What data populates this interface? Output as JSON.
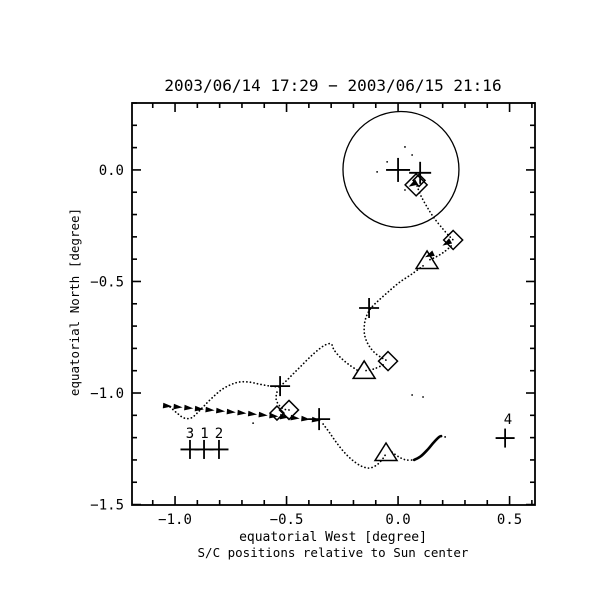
{
  "colors": {
    "ink": "#000000",
    "background": "#ffffff"
  },
  "chart_data": {
    "type": "scatter",
    "title": "2003/06/14 17:29 − 2003/06/15 21:16",
    "xlabel": "equatorial West [degree]",
    "ylabel": "equatorial North [degree]",
    "caption": "S/C positions relative to Sun center",
    "xlim": [
      -1.193,
      0.614
    ],
    "ylim": [
      -1.502,
      0.3
    ],
    "grid": false,
    "x_axis": {
      "major": [
        -1.0,
        -0.5,
        0.0,
        0.5
      ],
      "major_labels": [
        "−1.0",
        "−0.5",
        "0.0",
        "0.5"
      ],
      "minor_step": 0.1
    },
    "y_axis": {
      "major": [
        0.0,
        -0.5,
        -1.0,
        -1.5
      ],
      "major_labels": [
        "0.0",
        "−0.5",
        "−1.0",
        "−1.5"
      ],
      "minor_step": 0.1
    },
    "sun_disk": {
      "x": 0.013,
      "y": 0.002,
      "r_deg": 0.26
    },
    "dots": [
      [
        0.031,
        0.103
      ],
      [
        0.063,
        0.067
      ],
      [
        -0.049,
        0.036
      ],
      [
        -0.094,
        -0.009
      ],
      [
        0.031,
        -0.09
      ],
      [
        0.063,
        -1.009
      ],
      [
        0.112,
        -1.018
      ],
      [
        -0.65,
        -1.135
      ],
      [
        0.211,
        -1.197
      ]
    ],
    "markers": [
      {
        "type": "plus",
        "x": 0.0,
        "y": 0.0,
        "size": 24
      },
      {
        "type": "plus",
        "x": 0.099,
        "y": -0.013,
        "size": 22
      },
      {
        "type": "plus",
        "x": -0.13,
        "y": -0.619,
        "size": 20
      },
      {
        "type": "plus",
        "x": -0.529,
        "y": -0.969,
        "size": 20
      },
      {
        "type": "plus",
        "x": -0.354,
        "y": -1.117,
        "size": 22
      },
      {
        "type": "plus",
        "x": 0.48,
        "y": -1.202,
        "size": 19
      },
      {
        "type": "plus",
        "x": -0.933,
        "y": -1.253,
        "size": 19
      },
      {
        "type": "plus",
        "x": -0.87,
        "y": -1.253,
        "size": 19
      },
      {
        "type": "plus",
        "x": -0.803,
        "y": -1.253,
        "size": 19
      },
      {
        "type": "diamond",
        "x": 0.081,
        "y": -0.067,
        "size": 22
      },
      {
        "type": "diamond",
        "x": 0.094,
        "y": -0.047,
        "size": 12
      },
      {
        "type": "diamond",
        "x": 0.247,
        "y": -0.314,
        "size": 19
      },
      {
        "type": "diamond",
        "x": -0.045,
        "y": -0.857,
        "size": 19
      },
      {
        "type": "diamond",
        "x": -0.489,
        "y": -1.076,
        "size": 19
      },
      {
        "type": "diamond",
        "x": -0.543,
        "y": -1.09,
        "size": 14
      },
      {
        "type": "triangle",
        "x": 0.13,
        "y": -0.408,
        "size": 22
      },
      {
        "type": "triangle",
        "x": -0.152,
        "y": -0.901,
        "size": 22
      },
      {
        "type": "triangle",
        "x": -0.054,
        "y": -1.269,
        "size": 22
      }
    ],
    "sc_labels": [
      {
        "text": "3",
        "x": -0.933,
        "y": -1.202
      },
      {
        "text": "1",
        "x": -0.868,
        "y": -1.202
      },
      {
        "text": "2",
        "x": -0.803,
        "y": -1.202
      },
      {
        "text": "4",
        "x": 0.493,
        "y": -1.139
      }
    ],
    "paths": [
      {
        "style": "dotted",
        "points": [
          [
            0.085,
            -0.072
          ],
          [
            0.103,
            -0.117
          ],
          [
            0.13,
            -0.166
          ],
          [
            0.161,
            -0.215
          ],
          [
            0.197,
            -0.26
          ],
          [
            0.229,
            -0.296
          ],
          [
            0.247,
            -0.314
          ]
        ]
      },
      {
        "style": "dotted",
        "points": [
          [
            0.238,
            -0.341
          ],
          [
            0.206,
            -0.368
          ],
          [
            0.17,
            -0.39
          ],
          [
            0.13,
            -0.408
          ]
        ]
      },
      {
        "style": "dotted",
        "points": [
          [
            0.112,
            -0.43
          ],
          [
            0.063,
            -0.466
          ],
          [
            0.009,
            -0.502
          ],
          [
            -0.04,
            -0.543
          ],
          [
            -0.085,
            -0.583
          ],
          [
            -0.121,
            -0.619
          ],
          [
            -0.143,
            -0.659
          ],
          [
            -0.152,
            -0.704
          ],
          [
            -0.148,
            -0.749
          ],
          [
            -0.13,
            -0.789
          ],
          [
            -0.103,
            -0.821
          ],
          [
            -0.072,
            -0.843
          ],
          [
            -0.045,
            -0.857
          ]
        ]
      },
      {
        "style": "dotted",
        "points": [
          [
            -0.067,
            -0.874
          ],
          [
            -0.108,
            -0.892
          ],
          [
            -0.152,
            -0.901
          ]
        ]
      },
      {
        "style": "dotted",
        "points": [
          [
            -0.184,
            -0.897
          ],
          [
            -0.224,
            -0.87
          ],
          [
            -0.26,
            -0.839
          ],
          [
            -0.287,
            -0.807
          ],
          [
            -0.3,
            -0.78
          ],
          [
            -0.327,
            -0.785
          ],
          [
            -0.359,
            -0.807
          ],
          [
            -0.395,
            -0.839
          ],
          [
            -0.435,
            -0.879
          ],
          [
            -0.471,
            -0.915
          ],
          [
            -0.502,
            -0.946
          ],
          [
            -0.529,
            -0.969
          ]
        ]
      },
      {
        "style": "dotted",
        "points": [
          [
            -0.543,
            -0.996
          ],
          [
            -0.547,
            -1.027
          ],
          [
            -0.534,
            -1.054
          ],
          [
            -0.511,
            -1.072
          ],
          [
            -0.489,
            -1.076
          ]
        ]
      },
      {
        "style": "dotted",
        "points": [
          [
            -1.022,
            -1.063
          ],
          [
            -0.991,
            -1.09
          ],
          [
            -0.96,
            -1.112
          ],
          [
            -0.928,
            -1.112
          ],
          [
            -0.901,
            -1.09
          ],
          [
            -0.87,
            -1.058
          ],
          [
            -0.834,
            -1.022
          ],
          [
            -0.794,
            -0.987
          ],
          [
            -0.753,
            -0.964
          ],
          [
            -0.713,
            -0.951
          ],
          [
            -0.668,
            -0.951
          ],
          [
            -0.623,
            -0.96
          ],
          [
            -0.574,
            -0.969
          ],
          [
            -0.529,
            -0.973
          ]
        ]
      },
      {
        "style": "dotted",
        "points": [
          [
            -0.336,
            -1.139
          ],
          [
            -0.309,
            -1.175
          ],
          [
            -0.278,
            -1.22
          ],
          [
            -0.242,
            -1.265
          ],
          [
            -0.206,
            -1.3
          ],
          [
            -0.166,
            -1.327
          ],
          [
            -0.126,
            -1.336
          ],
          [
            -0.09,
            -1.318
          ],
          [
            -0.063,
            -1.287
          ],
          [
            -0.054,
            -1.269
          ]
        ]
      },
      {
        "style": "dotted",
        "points": [
          [
            -0.027,
            -1.265
          ],
          [
            0.004,
            -1.287
          ],
          [
            0.036,
            -1.3
          ],
          [
            0.072,
            -1.3
          ]
        ]
      },
      {
        "style": "solid",
        "points": [
          [
            0.072,
            -1.3
          ],
          [
            0.103,
            -1.283
          ],
          [
            0.135,
            -1.251
          ],
          [
            0.161,
            -1.22
          ],
          [
            0.184,
            -1.197
          ],
          [
            0.193,
            -1.193
          ]
        ]
      }
    ],
    "thick_track": {
      "x1": -1.036,
      "y1": -1.058,
      "x2": -0.368,
      "y2": -1.121,
      "n_dashes": 15
    },
    "arrows": [
      {
        "x": 0.22,
        "y": -0.327,
        "angle": 150
      },
      {
        "x": 0.068,
        "y": -0.063,
        "angle": 150
      },
      {
        "x": 0.143,
        "y": -0.381,
        "angle": 155
      }
    ]
  }
}
